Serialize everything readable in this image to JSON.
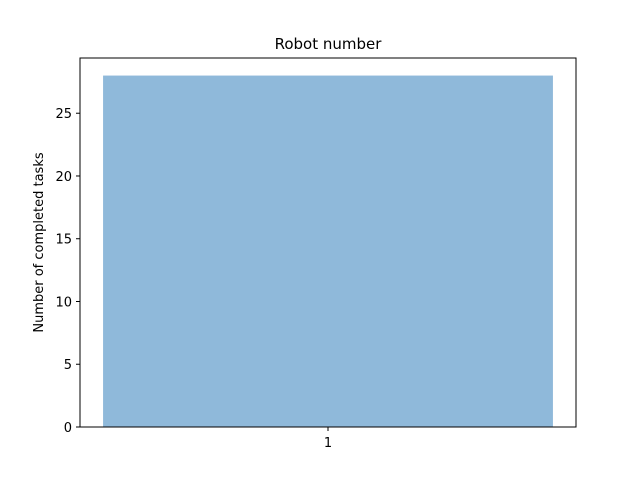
{
  "chart_data": {
    "type": "bar",
    "title": "Robot number",
    "xlabel": "",
    "ylabel": "Number of completed tasks",
    "categories": [
      "1"
    ],
    "values": [
      28
    ],
    "ylim": [
      0,
      29.4
    ],
    "yticks": [
      0,
      5,
      10,
      15,
      20,
      25
    ],
    "grid": false,
    "legend": "none",
    "colors": {
      "bar": "#8fb9da",
      "axes": "#000000",
      "background": "#ffffff"
    }
  }
}
